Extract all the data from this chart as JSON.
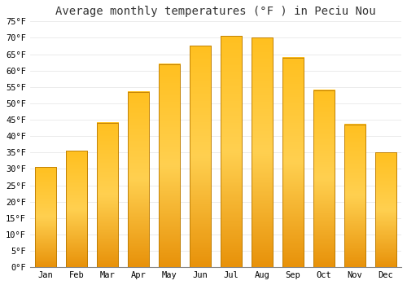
{
  "title": "Average monthly temperatures (°F ) in Peciu Nou",
  "months": [
    "Jan",
    "Feb",
    "Mar",
    "Apr",
    "May",
    "Jun",
    "Jul",
    "Aug",
    "Sep",
    "Oct",
    "Nov",
    "Dec"
  ],
  "values": [
    30.5,
    35.5,
    44.0,
    53.5,
    62.0,
    67.5,
    70.5,
    70.0,
    64.0,
    54.0,
    43.5,
    35.0
  ],
  "bar_color": "#FFA500",
  "bar_edge_color": "#CC8800",
  "ylim": [
    0,
    75
  ],
  "yticks": [
    0,
    5,
    10,
    15,
    20,
    25,
    30,
    35,
    40,
    45,
    50,
    55,
    60,
    65,
    70,
    75
  ],
  "background_color": "#ffffff",
  "grid_color": "#e8e8e8",
  "title_fontsize": 10,
  "tick_fontsize": 7.5,
  "font_family": "monospace"
}
